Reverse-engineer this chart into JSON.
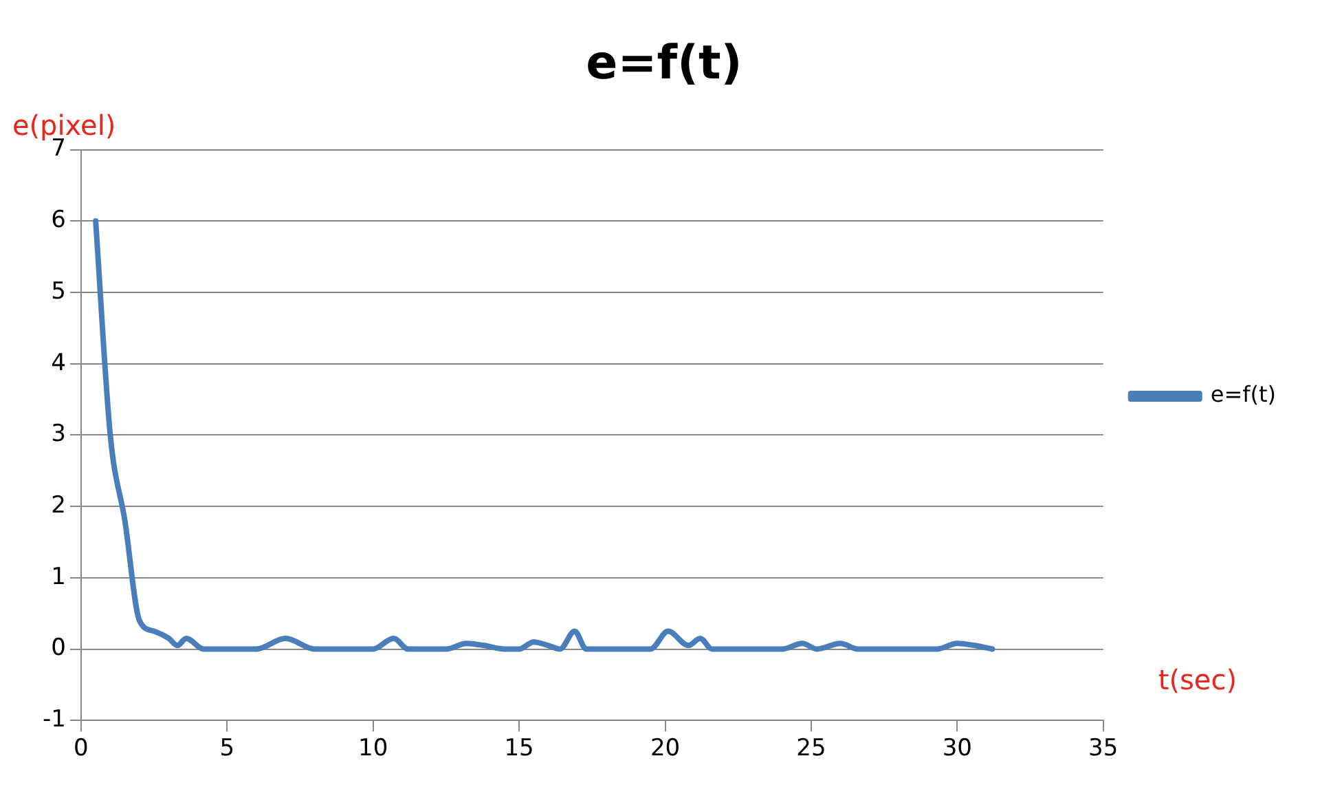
{
  "chart_data": {
    "type": "line",
    "title": "e=f(t)",
    "xlabel": "t(sec)",
    "ylabel": "e(pixel)",
    "series": [
      {
        "name": "e=f(t)",
        "color": "#4a7ebb",
        "x": [
          0.5,
          1,
          1.5,
          2,
          2.5,
          3,
          3.3,
          3.6,
          4.2,
          6,
          7,
          8,
          10,
          10.7,
          11.2,
          12.5,
          13.2,
          13.8,
          14.5,
          15,
          15.5,
          16,
          16.4,
          16.9,
          17.3,
          19.5,
          20.1,
          20.8,
          21.2,
          21.6,
          24,
          24.7,
          25.2,
          26,
          26.6,
          29.3,
          30,
          30.6,
          31.2
        ],
        "values": [
          6,
          3,
          1.8,
          0.4,
          0.25,
          0.15,
          0.05,
          0.15,
          0,
          0,
          0.15,
          0,
          0,
          0.15,
          0,
          0,
          0.08,
          0.05,
          0,
          0,
          0.1,
          0.05,
          0,
          0.25,
          0,
          0,
          0.25,
          0.05,
          0.15,
          0,
          0,
          0.08,
          0,
          0.08,
          0,
          0,
          0.08,
          0.05,
          0
        ]
      }
    ],
    "xlim": [
      0,
      35
    ],
    "xticks": [
      0,
      5,
      10,
      15,
      20,
      25,
      30,
      35
    ],
    "ylim": [
      -1,
      7
    ],
    "yticks": [
      -1,
      0,
      1,
      2,
      3,
      4,
      5,
      6,
      7
    ],
    "grid": "y",
    "legend": "right",
    "marker": "none",
    "line_style": "solid"
  }
}
